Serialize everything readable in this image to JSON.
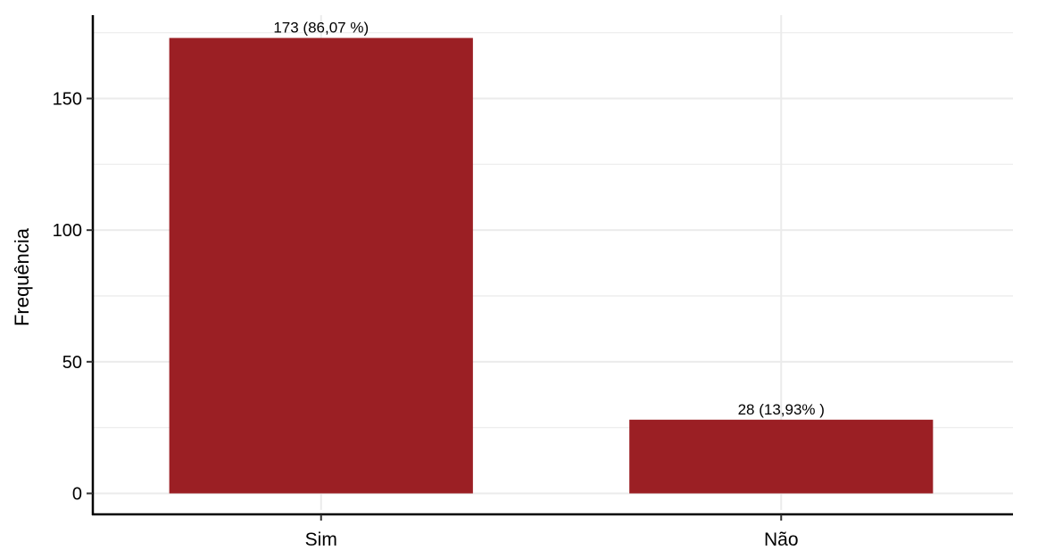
{
  "chart_data": {
    "type": "bar",
    "categories": [
      "Sim",
      "Não"
    ],
    "values": [
      173,
      28
    ],
    "data_labels": [
      "173 (86,07 %)",
      "28 (13,93% )"
    ],
    "xlabel": "",
    "ylabel": "Frequência",
    "ylim": [
      0,
      182
    ],
    "yticks": [
      0,
      50,
      100,
      150
    ],
    "ytick_labels": [
      "0",
      "50",
      "100",
      "150"
    ],
    "grid": true,
    "bar_color": "#9b1f24",
    "grid_color": "#ebebeb",
    "axis_color": "#000000"
  }
}
